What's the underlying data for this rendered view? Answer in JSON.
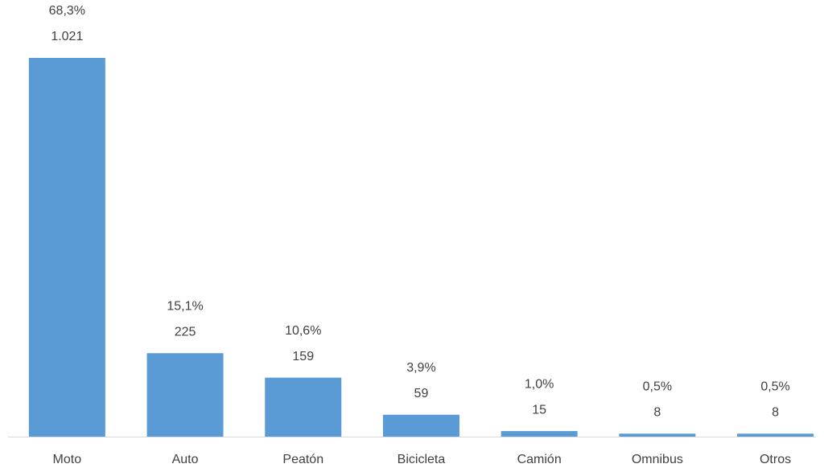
{
  "chart_data": {
    "type": "bar",
    "categories": [
      "Moto",
      "Auto",
      "Peatón",
      "Bicicleta",
      "Camión",
      "Omnibus",
      "Otros"
    ],
    "values": [
      1021,
      225,
      159,
      59,
      15,
      8,
      8
    ],
    "value_labels": [
      "1.021",
      "225",
      "159",
      "59",
      "15",
      "8",
      "8"
    ],
    "percent_values": [
      68.3,
      15.1,
      10.6,
      3.9,
      1.0,
      0.5,
      0.5
    ],
    "percent_labels": [
      "68,3%",
      "15,1%",
      "10,6%",
      "3,9%",
      "1,0%",
      "0,5%",
      "0,5%"
    ],
    "color": "#5b9bd5"
  }
}
